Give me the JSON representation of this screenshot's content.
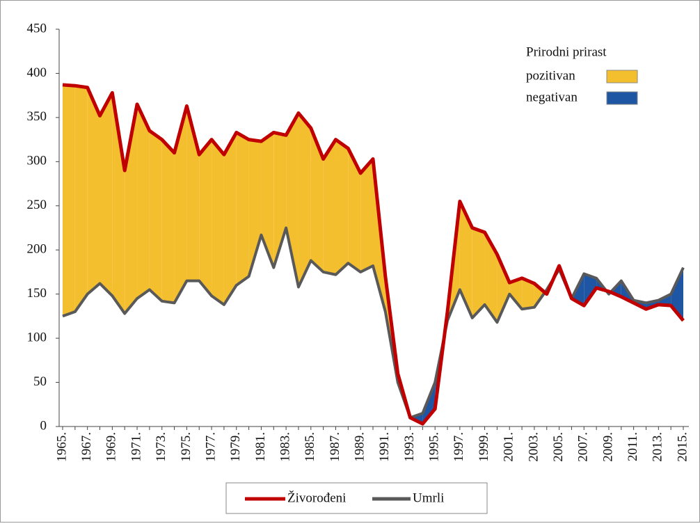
{
  "chart_data": {
    "type": "line",
    "categories": [
      "1965.",
      null,
      "1967.",
      null,
      "1969.",
      null,
      "1971.",
      null,
      "1973.",
      null,
      "1975.",
      null,
      "1977.",
      null,
      "1979.",
      null,
      "1981.",
      null,
      "1983.",
      null,
      "1985.",
      null,
      "1987.",
      null,
      "1989.",
      null,
      "1991.",
      null,
      "1993.",
      null,
      "1995.",
      null,
      "1997.",
      null,
      "1999.",
      null,
      "2001.",
      null,
      "2003.",
      null,
      "2005.",
      null,
      "2007.",
      null,
      "2009.",
      null,
      "2011.",
      null,
      "2013.",
      null,
      "2015."
    ],
    "series": [
      {
        "name": "Živorođeni",
        "color": "#c00000",
        "values": [
          387,
          386,
          384,
          352,
          378,
          290,
          365,
          335,
          325,
          310,
          363,
          308,
          325,
          308,
          333,
          325,
          323,
          333,
          330,
          355,
          338,
          303,
          325,
          315,
          287,
          303,
          170,
          60,
          10,
          3,
          20,
          130,
          255,
          225,
          220,
          195,
          163,
          168,
          162,
          150,
          182,
          145,
          137,
          157,
          153,
          147,
          140,
          133,
          138,
          137,
          120
        ]
      },
      {
        "name": "Umrli",
        "color": "#595959",
        "values": [
          125,
          130,
          150,
          162,
          148,
          128,
          145,
          155,
          142,
          140,
          165,
          165,
          148,
          138,
          160,
          170,
          217,
          180,
          225,
          158,
          188,
          175,
          172,
          185,
          175,
          182,
          130,
          50,
          10,
          15,
          50,
          120,
          155,
          123,
          138,
          118,
          150,
          133,
          135,
          155,
          178,
          145,
          173,
          168,
          150,
          165,
          143,
          140,
          143,
          150,
          180
        ]
      }
    ],
    "fill_legend": {
      "title": "Prirodni prirast",
      "positive": {
        "label": "pozitivan",
        "color": "#f4bf2f"
      },
      "negative": {
        "label": "negativan",
        "color": "#1f56a3"
      }
    },
    "ylim": [
      0,
      450
    ],
    "yticks": [
      0,
      50,
      100,
      150,
      200,
      250,
      300,
      350,
      400,
      450
    ]
  }
}
